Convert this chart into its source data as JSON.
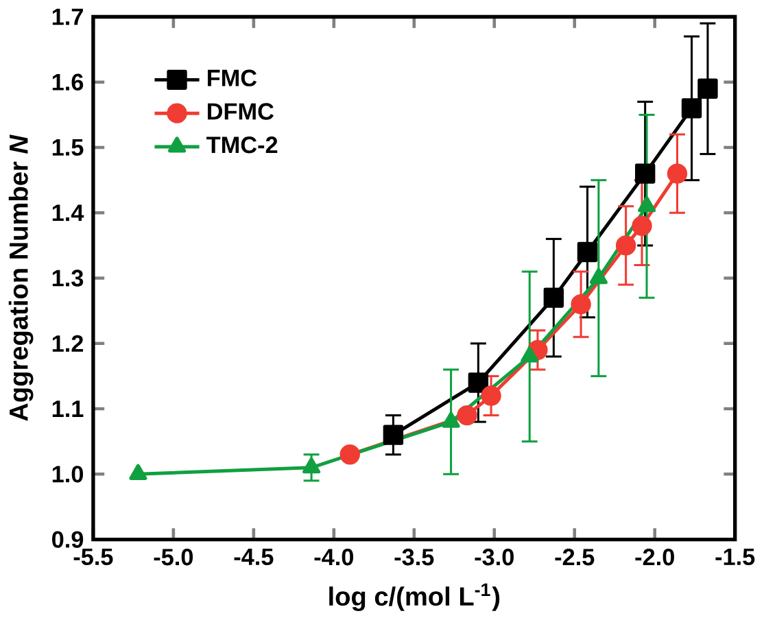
{
  "chart_data": {
    "type": "line",
    "xlabel": "log c/(mol L$^{-1}$)",
    "ylabel": "Aggregation Number *N*",
    "xlim": [
      -5.5,
      -1.5
    ],
    "ylim": [
      0.9,
      1.7
    ],
    "xticks": [
      -5.5,
      {
        "value": -5,
        "label": "-5.0"
      },
      -4.5,
      {
        "value": -4,
        "label": "-4.0"
      },
      -3.5,
      {
        "value": -3,
        "label": "-3.0"
      },
      -2.5,
      {
        "value": -2,
        "label": "-2.0"
      },
      -1.5
    ],
    "yticks": [
      0.9,
      {
        "value": 1,
        "label": "1.0"
      },
      1.1,
      1.2,
      1.3,
      1.4,
      1.5,
      1.6,
      1.7
    ],
    "legend": "top left",
    "line_style": "solid",
    "series": [
      {
        "name": "FMC",
        "color": "#000000",
        "marker": "square",
        "x": [
          -3.63,
          -3.1,
          -2.63,
          -2.42,
          -2.06,
          -1.77,
          -1.67
        ],
        "values": [
          1.06,
          1.14,
          1.27,
          1.34,
          1.46,
          1.56,
          1.59
        ],
        "errors": [
          [
            1.03,
            1.09
          ],
          [
            1.08,
            1.2
          ],
          [
            1.18,
            1.36
          ],
          [
            1.24,
            1.44
          ],
          [
            1.35,
            1.57
          ],
          [
            1.45,
            1.67
          ],
          [
            1.49,
            1.69
          ]
        ]
      },
      {
        "name": "DFMC",
        "color": "#f03c32",
        "marker": "circle",
        "x": [
          -3.9,
          -3.17,
          -3.02,
          -2.73,
          -2.46,
          -2.18,
          -2.08,
          -1.86
        ],
        "values": [
          1.03,
          1.09,
          1.12,
          1.19,
          1.26,
          1.35,
          1.38,
          1.46
        ],
        "errors": [
          null,
          null,
          [
            1.09,
            1.15
          ],
          [
            1.16,
            1.22
          ],
          [
            1.21,
            1.31
          ],
          [
            1.29,
            1.41
          ],
          [
            1.32,
            1.45
          ],
          [
            1.4,
            1.52
          ]
        ]
      },
      {
        "name": "TMC-2",
        "color": "#10a040",
        "marker": "triangle",
        "x": [
          -5.22,
          -4.14,
          -3.27,
          -2.78,
          -2.35,
          -2.05
        ],
        "values": [
          1.0,
          1.01,
          1.08,
          1.18,
          1.3,
          1.41
        ],
        "errors": [
          null,
          [
            0.99,
            1.03
          ],
          [
            1.0,
            1.16
          ],
          [
            1.05,
            1.31
          ],
          [
            1.15,
            1.45
          ],
          [
            1.27,
            1.55
          ]
        ]
      }
    ]
  }
}
